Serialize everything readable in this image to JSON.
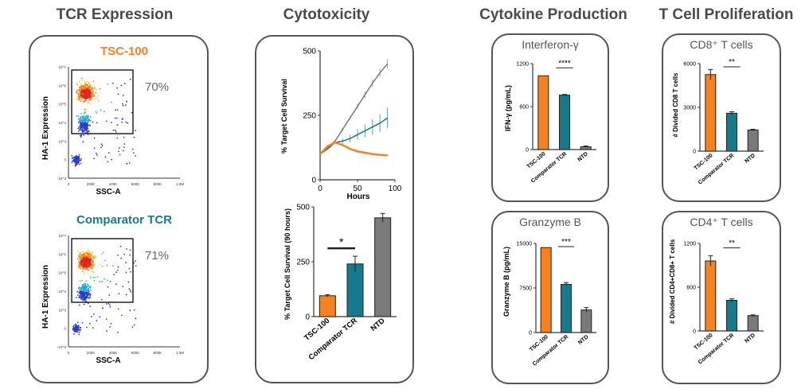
{
  "titles": {
    "tcr": "TCR Expression",
    "cyto": "Cytotoxicity",
    "cytokine": "Cytokine Production",
    "prolif": "T Cell Proliferation"
  },
  "colors": {
    "tsc100": "#f5821f",
    "comparator": "#167a8c",
    "ntd": "#7a7a7a",
    "gate": "#222222"
  },
  "chart_data": [
    {
      "type": "scatter",
      "title": "TSC-100",
      "xlabel": "SSC-A",
      "ylabel": "HA-1 Expression",
      "gate_label": "70%",
      "x_ticks": [
        "0",
        "200K",
        "400K",
        "600K",
        "800K",
        "1.0M"
      ],
      "y_ticks": [
        "10^7",
        "10^6",
        "10^5",
        "10^4",
        "10^3",
        "0",
        "-10^3"
      ]
    },
    {
      "type": "scatter",
      "title": "Comparator TCR",
      "xlabel": "SSC-A",
      "ylabel": "HA-1 Expression",
      "gate_label": "71%",
      "x_ticks": [
        "0",
        "200K",
        "400K",
        "600K",
        "800K",
        "1.0M"
      ],
      "y_ticks": [
        "10^7",
        "10^6",
        "10^5",
        "10^4",
        "10^3",
        "0",
        "-10^3"
      ]
    },
    {
      "type": "line",
      "xlabel": "Hours",
      "ylabel": "% Target Cell Survival",
      "xlim": [
        0,
        100
      ],
      "ylim": [
        0,
        500
      ],
      "x_ticks": [
        0,
        50,
        100
      ],
      "y_ticks": [
        0,
        250,
        500
      ],
      "series": [
        {
          "color": "#7a7a7a",
          "x": [
            0,
            10,
            20,
            30,
            40,
            50,
            60,
            70,
            80,
            90
          ],
          "y": [
            100,
            125,
            150,
            195,
            240,
            285,
            330,
            375,
            415,
            450
          ],
          "err": [
            0,
            2,
            4,
            6,
            8,
            10,
            12,
            14,
            16,
            18
          ]
        },
        {
          "color": "#167a8c",
          "x": [
            0,
            10,
            20,
            30,
            40,
            50,
            60,
            70,
            80,
            90
          ],
          "y": [
            100,
            120,
            145,
            150,
            160,
            175,
            190,
            205,
            220,
            240
          ],
          "err": [
            0,
            2,
            5,
            10,
            15,
            20,
            25,
            30,
            35,
            40
          ]
        },
        {
          "color": "#f5821f",
          "x": [
            0,
            10,
            20,
            30,
            40,
            50,
            60,
            70,
            80,
            90
          ],
          "y": [
            100,
            130,
            145,
            135,
            120,
            110,
            105,
            100,
            97,
            95
          ],
          "err": [
            0,
            2,
            3,
            3,
            2,
            2,
            2,
            2,
            2,
            2
          ]
        }
      ]
    },
    {
      "type": "bar",
      "ylabel": "% Target Cell Survival (90 hours)",
      "categories": [
        "TSC-100",
        "Comparator TCR",
        "NTD"
      ],
      "values": [
        95,
        240,
        450
      ],
      "errors": [
        5,
        35,
        20
      ],
      "ylim": [
        0,
        500
      ],
      "y_ticks": [
        0,
        250,
        500
      ],
      "significance": "*"
    },
    {
      "type": "bar",
      "title": "Interferon-γ",
      "ylabel": "IFN-γ (pg/mL)",
      "categories": [
        "TSC-100",
        "Comparator TCR",
        "NTD"
      ],
      "values": [
        1030,
        760,
        40
      ],
      "errors": [
        0,
        10,
        10
      ],
      "ylim": [
        0,
        1200
      ],
      "y_ticks": [
        0,
        600,
        1200
      ],
      "significance": "****"
    },
    {
      "type": "bar",
      "title": "Granzyme B",
      "ylabel": "Granzyme B (pg/mL)",
      "categories": [
        "TSC-100",
        "Comparator TCR",
        "NTD"
      ],
      "values": [
        14300,
        8100,
        3800
      ],
      "errors": [
        0,
        300,
        400
      ],
      "ylim": [
        0,
        15000
      ],
      "y_ticks": [
        0,
        7500,
        15000
      ],
      "significance": "***"
    },
    {
      "type": "bar",
      "title": "CD8⁺ T cells",
      "ylabel": "# Divided CD8 T cells",
      "categories": [
        "TSC-100",
        "Comparator TCR",
        "NTD"
      ],
      "values": [
        5250,
        2600,
        1450
      ],
      "errors": [
        350,
        100,
        50
      ],
      "ylim": [
        0,
        6000
      ],
      "y_ticks": [
        0,
        3000,
        6000
      ],
      "significance": "**"
    },
    {
      "type": "bar",
      "title": "CD4⁺ T cells",
      "ylabel": "# Divided CD4+CD8+ T cells",
      "categories": [
        "TSC-100",
        "Comparator TCR",
        "NTD"
      ],
      "values": [
        960,
        420,
        210
      ],
      "errors": [
        70,
        20,
        10
      ],
      "ylim": [
        0,
        1200
      ],
      "y_ticks": [
        0,
        600,
        1200
      ],
      "significance": "**"
    }
  ]
}
